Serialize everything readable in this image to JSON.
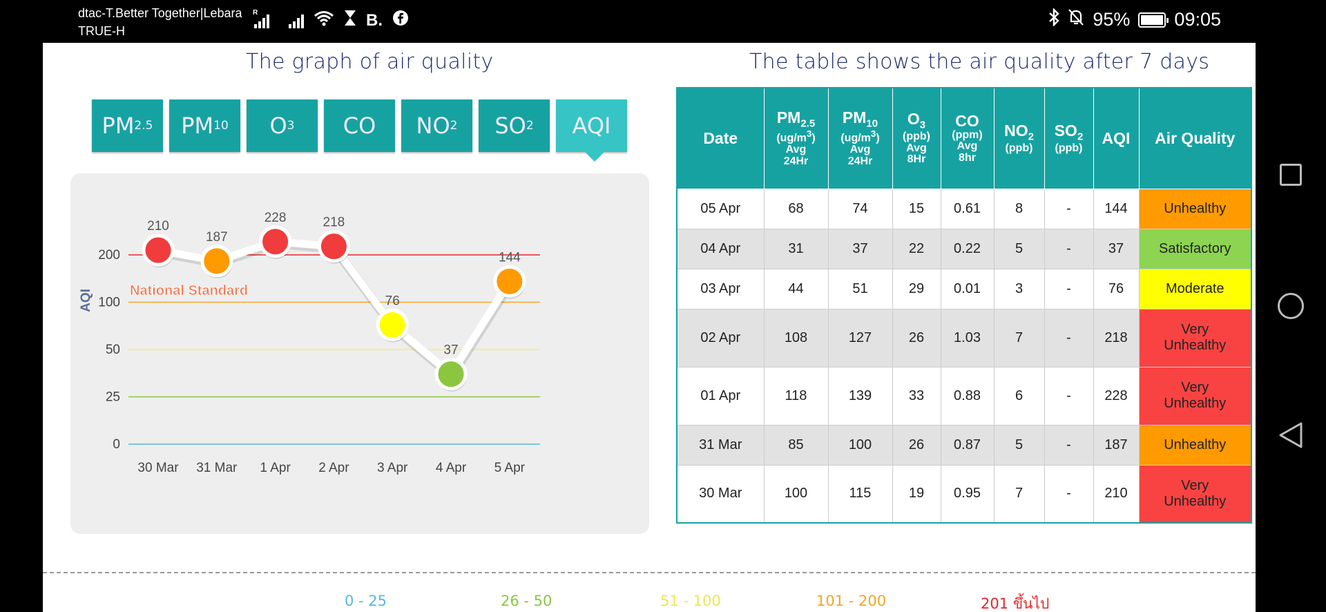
{
  "status_bar": {
    "carrier_line1": "dtac-T.Better Together|Lebara",
    "carrier_line2": "TRUE-H",
    "sim_r_label": "R",
    "app_badge": "B.",
    "battery": "95%",
    "time": "09:05"
  },
  "graph": {
    "title": "The graph of air quality",
    "tabs": [
      {
        "main": "PM",
        "sub": "2.5"
      },
      {
        "main": "PM",
        "sub": "10"
      },
      {
        "main": "O",
        "sub": "3"
      },
      {
        "main": "CO",
        "sub": ""
      },
      {
        "main": "NO",
        "sub": "2"
      },
      {
        "main": "SO",
        "sub": "2"
      },
      {
        "main": "AQI",
        "sub": ""
      }
    ],
    "active_tab": "AQI"
  },
  "chart_data": {
    "type": "line",
    "categories": [
      "30 Mar",
      "31 Mar",
      "1 Apr",
      "2 Apr",
      "3 Apr",
      "4 Apr",
      "5 Apr"
    ],
    "values": [
      210,
      187,
      228,
      218,
      76,
      37,
      144
    ],
    "point_colors": [
      "#f03c3c",
      "#ff9a00",
      "#f03c3c",
      "#f03c3c",
      "#ffff00",
      "#8cc63f",
      "#ff9a00"
    ],
    "ylabel": "AQI",
    "ytick_labels": [
      "0",
      "25",
      "50",
      "100",
      "200"
    ],
    "reference_lines": [
      {
        "value": 0,
        "color": "#57b7e6"
      },
      {
        "value": 25,
        "color": "#8cc63f"
      },
      {
        "value": 50,
        "color": "#f5f061"
      },
      {
        "value": 100,
        "color": "#f5a623"
      },
      {
        "value": 200,
        "color": "#e8262c"
      }
    ],
    "annotation": "National Standard"
  },
  "table": {
    "title": "The table shows the air quality after 7 days",
    "headers": {
      "date": "Date",
      "pm25": {
        "name": "PM",
        "sub": "2.5",
        "unit": "(ug/m",
        "unit_sup": "3",
        "unit_end": ")",
        "avg": "Avg",
        "period": "24Hr"
      },
      "pm10": {
        "name": "PM",
        "sub": "10",
        "unit": "(ug/m",
        "unit_sup": "3",
        "unit_end": ")",
        "avg": "Avg",
        "period": "24Hr"
      },
      "o3": {
        "name": "O",
        "sub": "3",
        "unit": "(ppb)",
        "avg": "Avg",
        "period": "8Hr"
      },
      "co": {
        "name": "CO",
        "unit": "(ppm)",
        "avg": "Avg",
        "period": "8hr"
      },
      "no2": {
        "name": "NO",
        "sub": "2",
        "unit": "(ppb)"
      },
      "so2": {
        "name": "SO",
        "sub": "2",
        "unit": "(ppb)"
      },
      "aqi": "AQI",
      "quality": "Air Quality"
    },
    "rows": [
      {
        "date": "05 Apr",
        "pm25": "68",
        "pm10": "74",
        "o3": "15",
        "co": "0.61",
        "no2": "8",
        "so2": "-",
        "aqi": "144",
        "q1": "Unhealthy",
        "q2": "",
        "color": "#ff9a00"
      },
      {
        "date": "04 Apr",
        "pm25": "31",
        "pm10": "37",
        "o3": "22",
        "co": "0.22",
        "no2": "5",
        "so2": "-",
        "aqi": "37",
        "q1": "Satisfactory",
        "q2": "",
        "color": "#8dd451"
      },
      {
        "date": "03 Apr",
        "pm25": "44",
        "pm10": "51",
        "o3": "29",
        "co": "0.01",
        "no2": "3",
        "so2": "-",
        "aqi": "76",
        "q1": "Moderate",
        "q2": "",
        "color": "#ffff00"
      },
      {
        "date": "02 Apr",
        "pm25": "108",
        "pm10": "127",
        "o3": "26",
        "co": "1.03",
        "no2": "7",
        "so2": "-",
        "aqi": "218",
        "q1": "Very",
        "q2": "Unhealthy",
        "color": "#f94343"
      },
      {
        "date": "01 Apr",
        "pm25": "118",
        "pm10": "139",
        "o3": "33",
        "co": "0.88",
        "no2": "6",
        "so2": "-",
        "aqi": "228",
        "q1": "Very",
        "q2": "Unhealthy",
        "color": "#f94343"
      },
      {
        "date": "31 Mar",
        "pm25": "85",
        "pm10": "100",
        "o3": "26",
        "co": "0.87",
        "no2": "5",
        "so2": "-",
        "aqi": "187",
        "q1": "Unhealthy",
        "q2": "",
        "color": "#ff9a00"
      },
      {
        "date": "30 Mar",
        "pm25": "100",
        "pm10": "115",
        "o3": "19",
        "co": "0.95",
        "no2": "7",
        "so2": "-",
        "aqi": "210",
        "q1": "Very",
        "q2": "Unhealthy",
        "color": "#f94343"
      }
    ]
  },
  "legend": [
    {
      "label": "0 - 25",
      "color": "#57b7e6"
    },
    {
      "label": "26 - 50",
      "color": "#8cc63f"
    },
    {
      "label": "51 - 100",
      "color": "#f0e64a"
    },
    {
      "label": "101 - 200",
      "color": "#f5a623"
    },
    {
      "label": "201 ขึ้นไป",
      "color": "#e8262c"
    }
  ]
}
